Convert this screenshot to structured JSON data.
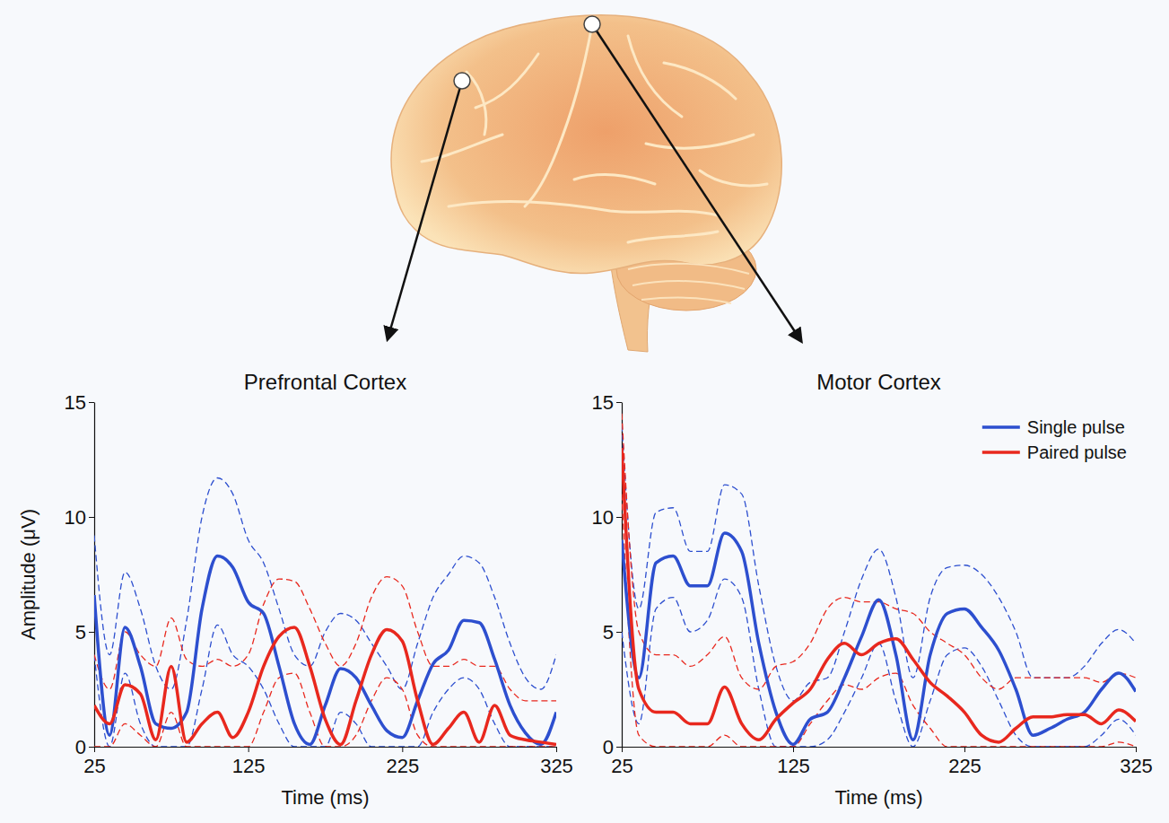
{
  "chart_data": [
    {
      "type": "line",
      "title": "Prefrontal Cortex",
      "x_label": "Time (ms)",
      "y_label": "Amplitude (μV)",
      "xlim": [
        25,
        325
      ],
      "ylim": [
        0,
        15
      ],
      "xticks": [
        25,
        125,
        225,
        325
      ],
      "yticks": [
        0,
        5,
        10,
        15
      ],
      "x": [
        25,
        35,
        45,
        55,
        65,
        75,
        85,
        95,
        105,
        115,
        125,
        135,
        145,
        155,
        165,
        175,
        185,
        195,
        205,
        215,
        225,
        235,
        245,
        255,
        265,
        275,
        285,
        295,
        305,
        315,
        325
      ],
      "series": [
        {
          "color": "#2d4fcf",
          "values": [
            6.6,
            0.5,
            5.2,
            3.5,
            1.0,
            0.8,
            1.5,
            6.0,
            8.3,
            7.8,
            6.3,
            5.8,
            3.5,
            1.0,
            0.1,
            1.8,
            3.4,
            3.0,
            1.8,
            0.7,
            0.4,
            2.0,
            3.6,
            4.2,
            5.5,
            5.4,
            3.8,
            1.8,
            0.6,
            0.1,
            1.5
          ],
          "upper": [
            9.2,
            4,
            7.6,
            6,
            3.5,
            2.5,
            5.5,
            10,
            11.7,
            11,
            9,
            8,
            6,
            4,
            3.5,
            5,
            5.8,
            5.5,
            4.5,
            3.5,
            2.5,
            4.5,
            6.5,
            7.5,
            8.3,
            8,
            6.5,
            4.5,
            3,
            2.5,
            4
          ],
          "lower": [
            4,
            0,
            3.2,
            1,
            0,
            0,
            0,
            2.5,
            5.3,
            4,
            3.5,
            2.5,
            1,
            0,
            0,
            0,
            1.5,
            1,
            0,
            0,
            0,
            0,
            1.5,
            2.5,
            3,
            2.5,
            1,
            0,
            0,
            0,
            0
          ]
        },
        {
          "color": "#e8281e",
          "values": [
            1.8,
            1.0,
            2.7,
            2.3,
            0.3,
            3.5,
            0.2,
            1.0,
            1.5,
            0.4,
            1.5,
            3.5,
            4.8,
            5.2,
            3.5,
            1.2,
            0.1,
            2.0,
            4.0,
            5.1,
            4.6,
            2.0,
            0.1,
            0.8,
            1.5,
            0.2,
            1.8,
            0.5,
            0.3,
            0.2,
            0.1
          ],
          "upper": [
            4,
            2.5,
            5,
            4,
            3.5,
            5.6,
            3.8,
            3.5,
            3.8,
            3.5,
            4,
            6.2,
            7.3,
            7.2,
            6,
            4.5,
            3.5,
            4.5,
            6.5,
            7.4,
            7,
            5,
            3.5,
            3.5,
            3.8,
            3.5,
            3.5,
            2.5,
            2,
            2,
            2
          ],
          "lower": [
            0,
            0,
            1,
            0.5,
            0,
            1.5,
            0,
            0,
            0,
            0,
            0,
            1.5,
            3,
            3.2,
            1.5,
            0,
            0,
            0.5,
            2,
            3,
            2.5,
            0.5,
            0,
            0,
            0,
            0,
            0,
            0,
            0,
            0,
            0
          ]
        }
      ]
    },
    {
      "type": "line",
      "title": "Motor Cortex",
      "x_label": "Time (ms)",
      "legend": "upper right",
      "xlim": [
        25,
        325
      ],
      "ylim": [
        0,
        15
      ],
      "xticks": [
        25,
        125,
        225,
        325
      ],
      "yticks": [
        0,
        5,
        10,
        15
      ],
      "x": [
        25,
        35,
        45,
        55,
        65,
        75,
        85,
        95,
        105,
        115,
        125,
        135,
        145,
        155,
        165,
        175,
        185,
        195,
        205,
        215,
        225,
        235,
        245,
        255,
        265,
        275,
        285,
        295,
        305,
        315,
        325
      ],
      "series": [
        {
          "name": "Single pulse",
          "color": "#2d4fcf",
          "values": [
            9.0,
            3.0,
            8.0,
            8.3,
            7.0,
            7.0,
            9.3,
            8.5,
            4.5,
            1.5,
            0.1,
            1.2,
            1.5,
            3.0,
            4.8,
            6.4,
            4.0,
            0.3,
            4.0,
            5.8,
            6.0,
            5.2,
            4.2,
            2.5,
            0.5,
            0.8,
            1.2,
            1.5,
            2.5,
            3.2,
            2.4
          ],
          "upper": [
            14,
            6,
            10.2,
            10.4,
            8.5,
            8.5,
            11.4,
            11,
            7,
            3.5,
            2,
            2.8,
            3,
            5,
            7.3,
            8.6,
            6.5,
            3,
            6.5,
            7.8,
            7.9,
            7.5,
            6.5,
            5,
            3,
            3,
            3,
            3.5,
            4.5,
            5.1,
            4.5
          ],
          "lower": [
            5,
            1,
            6,
            6.5,
            5,
            5.5,
            7.3,
            6.5,
            2.5,
            0,
            0,
            0,
            0.3,
            1.5,
            3,
            4.5,
            2,
            0,
            2,
            4,
            4.3,
            3.5,
            2,
            0.5,
            0,
            0,
            0,
            0,
            0.5,
            1.2,
            0.5
          ]
        },
        {
          "name": "Paired pulse",
          "color": "#e8281e",
          "values": [
            13.0,
            2.5,
            1.5,
            1.5,
            1.0,
            1.0,
            2.6,
            1.0,
            0.3,
            1.2,
            1.9,
            2.5,
            3.8,
            4.5,
            4.0,
            4.5,
            4.7,
            3.8,
            2.8,
            2.2,
            1.5,
            0.5,
            0.2,
            0.8,
            1.3,
            1.3,
            1.4,
            1.4,
            1.0,
            1.6,
            1.1
          ],
          "upper": [
            14.5,
            5,
            4,
            4,
            3.5,
            4,
            4.8,
            3,
            2.5,
            3.5,
            3.7,
            4.5,
            6,
            6.5,
            6.3,
            6.3,
            6,
            5.8,
            5,
            4.5,
            4,
            3,
            2.5,
            3,
            3,
            3,
            3,
            3,
            2.8,
            3.2,
            3
          ],
          "lower": [
            11,
            0.5,
            0,
            0,
            0,
            0,
            0.5,
            0,
            0,
            0,
            0,
            1,
            2,
            2.7,
            2.5,
            3,
            3.2,
            1.8,
            0.8,
            0,
            0,
            0,
            0,
            0,
            0,
            0,
            0,
            0,
            0,
            0.2,
            0
          ]
        }
      ]
    }
  ]
}
